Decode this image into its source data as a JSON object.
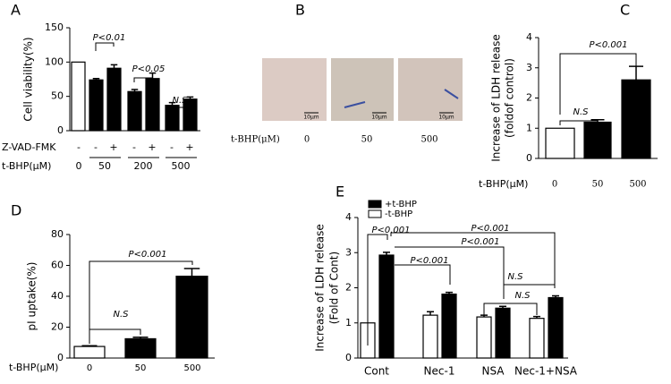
{
  "chart_data": [
    {
      "type": "bar",
      "panel_label": "A",
      "ylabel": [
        "Cell viability(%)"
      ],
      "values": [
        100,
        74,
        91,
        57,
        76,
        37,
        46
      ],
      "errors": [
        null,
        2,
        5,
        3,
        8,
        4,
        3
      ],
      "colors": [
        "#ffffff",
        "#000000",
        "#000000",
        "#000000",
        "#000000",
        "#000000",
        "#000000"
      ],
      "ylim": [
        0,
        150
      ],
      "yticks": [
        0,
        50,
        100,
        150
      ],
      "treatment_rows": [
        {
          "label": "Z-VAD-FMK",
          "values": [
            "-",
            "-",
            "+",
            "-",
            "+",
            "-",
            "+"
          ]
        },
        {
          "label": "t-BHP(μM)",
          "values": [
            "0",
            "50",
            "200",
            "500"
          ]
        }
      ],
      "annotations": [
        "P<0.01",
        "P<0.05",
        "N.S"
      ]
    },
    {
      "type": "image",
      "panel_label": "B",
      "xlabel": "t-BHP(μM)",
      "categories": [
        "0",
        "50",
        "500"
      ],
      "scale_labels": [
        "10μm",
        "10μm",
        "10μm"
      ]
    },
    {
      "type": "bar",
      "panel_label": "C",
      "ylabel": [
        "Increase of LDH release",
        "(foldof control)"
      ],
      "xlabel": "t-BHP(μM)",
      "categories": [
        "0",
        "50",
        "500"
      ],
      "values": [
        1,
        1.2,
        2.6
      ],
      "errors": [
        null,
        0.08,
        0.45
      ],
      "colors": [
        "#ffffff",
        "#000000",
        "#000000"
      ],
      "ylim": [
        0,
        4
      ],
      "yticks": [
        0,
        1,
        2,
        3,
        4
      ],
      "annotations": [
        "P<0.001",
        "N.S"
      ]
    },
    {
      "type": "bar",
      "panel_label": "D",
      "ylabel": [
        "pI uptake(%)"
      ],
      "xlabel": "t-BHP(μM)",
      "categories": [
        "0",
        "50",
        "500"
      ],
      "values": [
        7.5,
        12.5,
        53
      ],
      "errors": [
        0.5,
        1,
        5
      ],
      "colors": [
        "#ffffff",
        "#000000",
        "#000000"
      ],
      "ylim": [
        0,
        80
      ],
      "yticks": [
        0,
        20,
        40,
        60,
        80
      ],
      "annotations": [
        "P<0.001",
        "N.S"
      ]
    },
    {
      "type": "bar",
      "panel_label": "E",
      "ylabel": [
        "Increase of LDH release",
        "(Fold of Cont)"
      ],
      "categories": [
        "Cont",
        "Nec-1",
        "NSA",
        "Nec-1+NSA"
      ],
      "series": [
        {
          "name": "+t-BHP",
          "color": "#000000",
          "values": [
            2.93,
            1.82,
            1.42,
            1.72
          ],
          "errors": [
            0.08,
            0.05,
            0.05,
            0.05
          ]
        },
        {
          "name": "-t-BHP",
          "color": "#ffffff",
          "values": [
            1,
            1.22,
            1.17,
            1.13
          ],
          "errors": [
            null,
            0.1,
            0.05,
            0.05
          ]
        }
      ],
      "ylim": [
        0,
        4
      ],
      "yticks": [
        0,
        1,
        2,
        3,
        4
      ],
      "annotations": [
        "P<0.001",
        "P<0.001",
        "P<0.001",
        "P<0.001",
        "N.S",
        "N.S"
      ]
    }
  ]
}
